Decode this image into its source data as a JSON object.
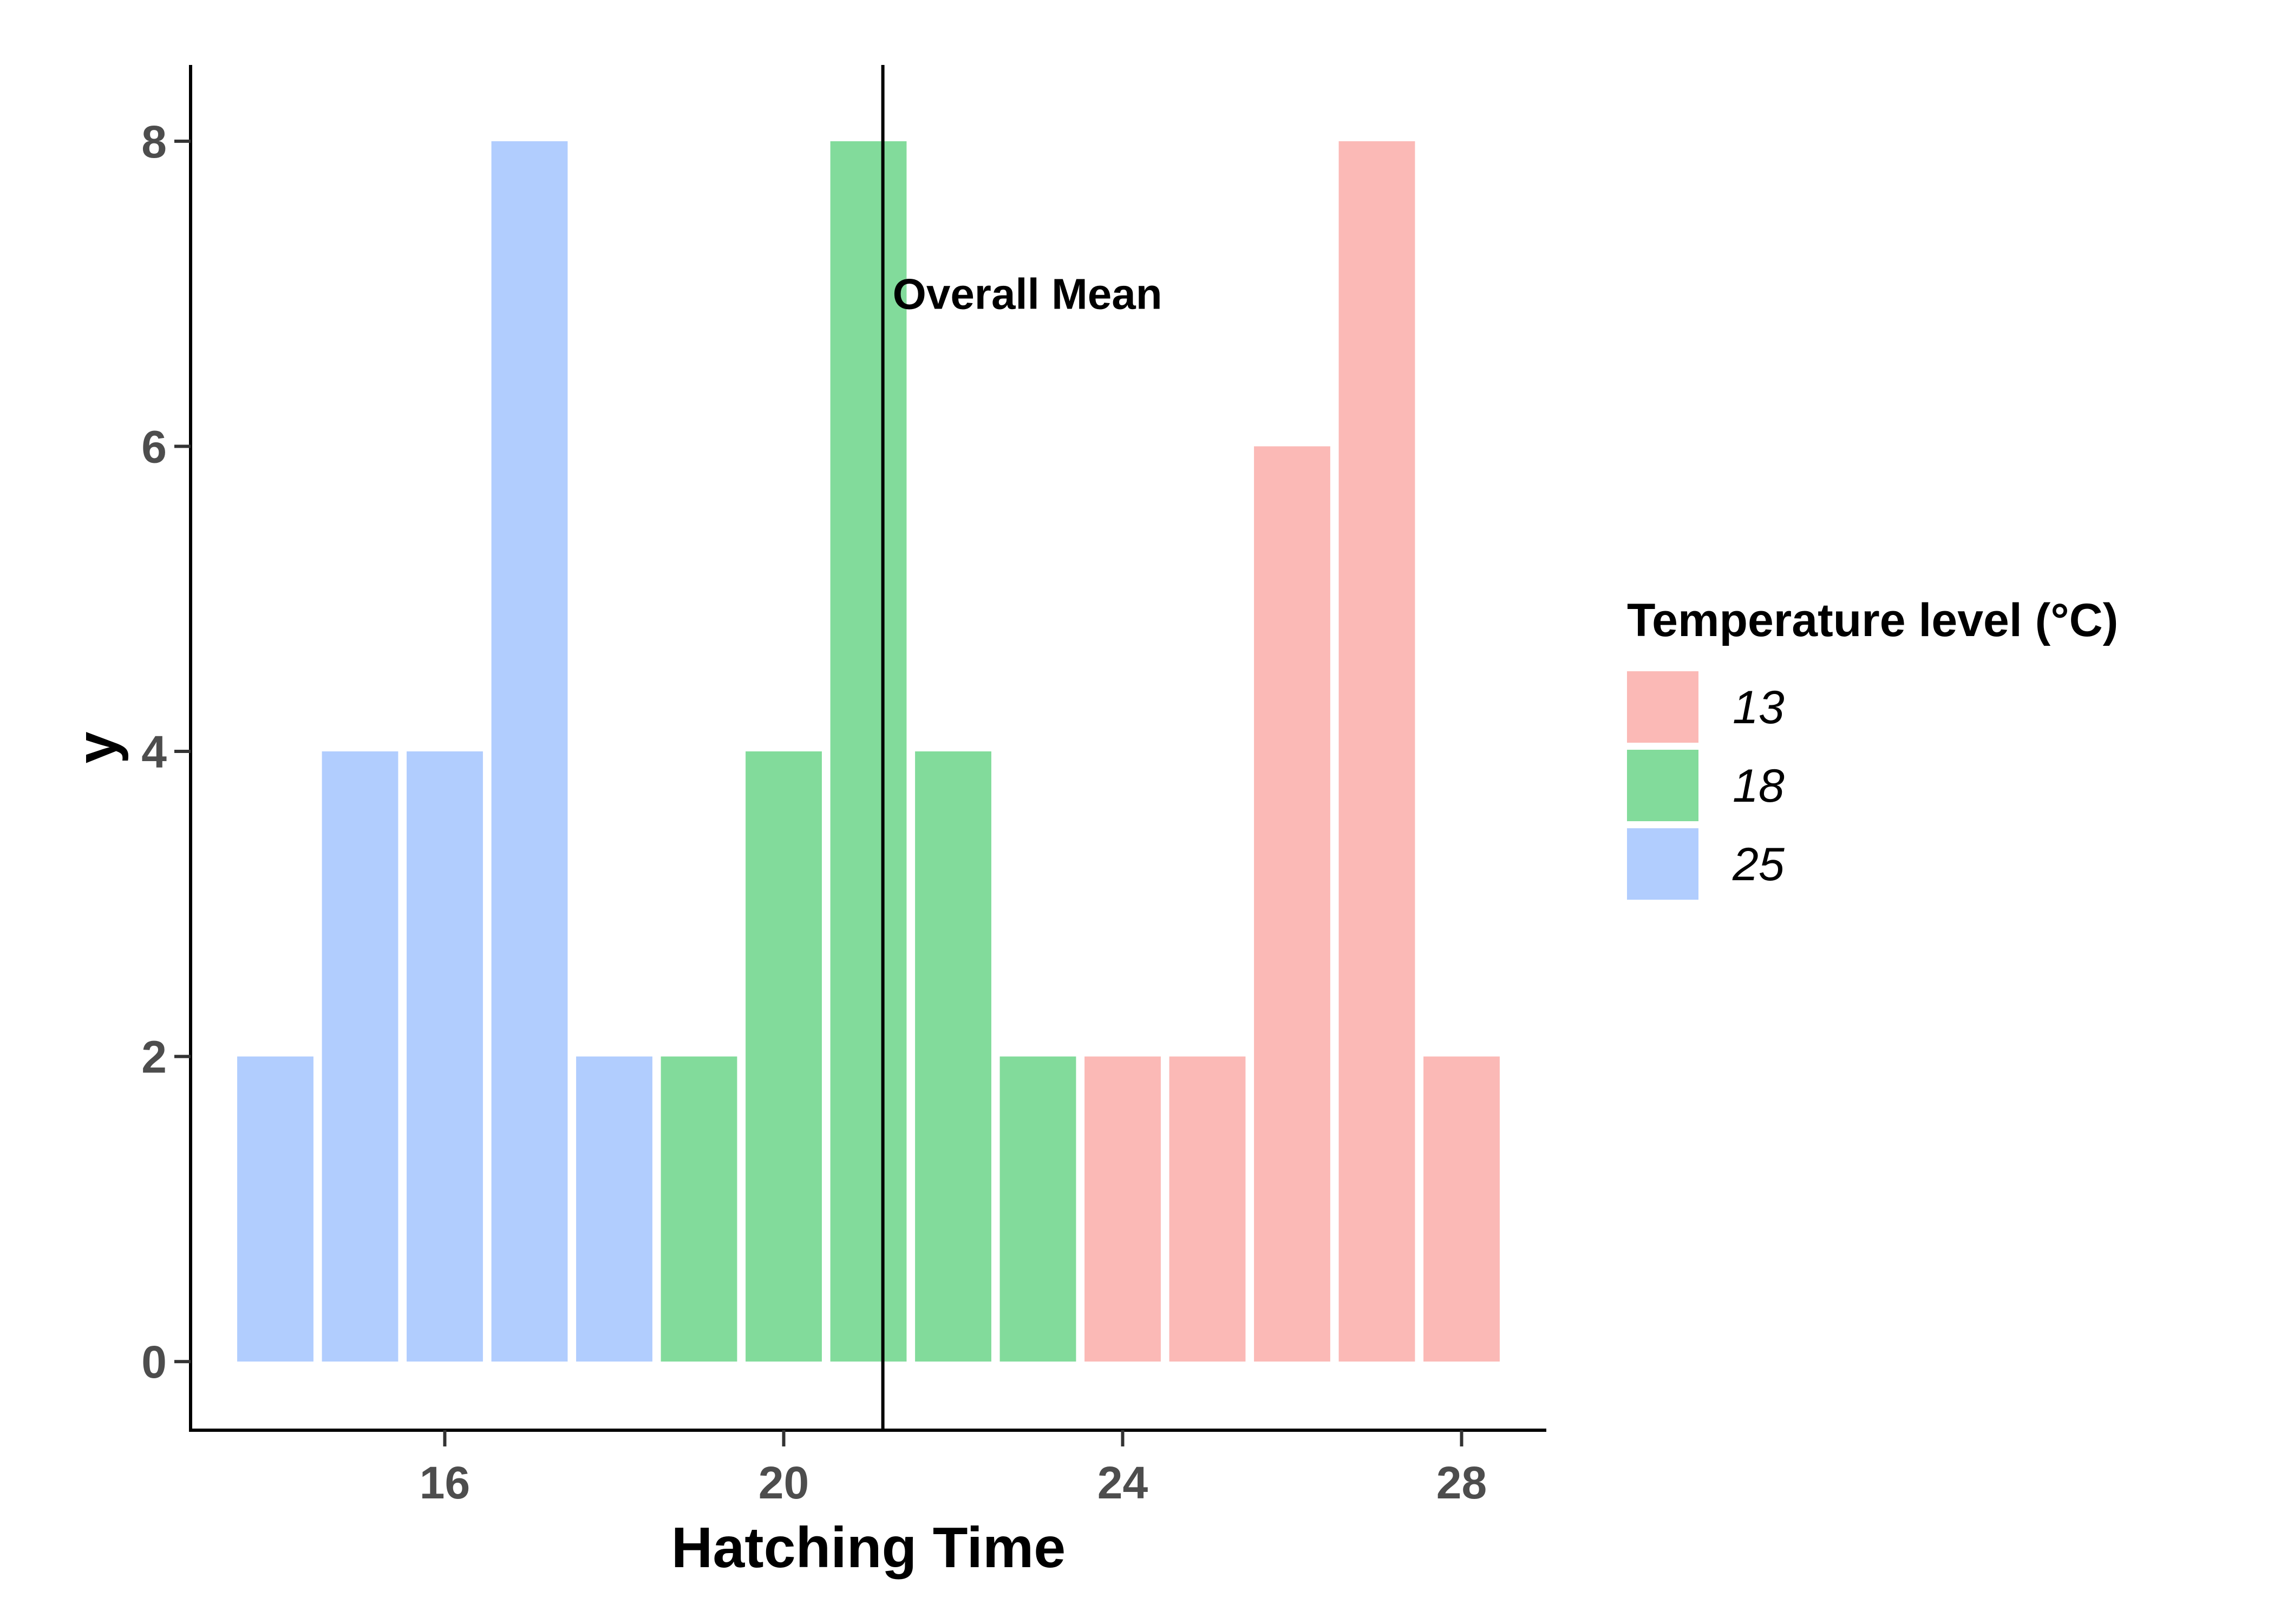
{
  "chart_data": {
    "type": "bar",
    "title": "",
    "xlabel": "Hatching Time",
    "ylabel": "y",
    "xlim": [
      13,
      29
    ],
    "ylim": [
      -0.45,
      8.5
    ],
    "x_ticks": [
      16,
      20,
      24,
      28
    ],
    "y_ticks": [
      0,
      2,
      4,
      6,
      8
    ],
    "grid": false,
    "legend": {
      "title": "Temperature level (°C)",
      "position": "right",
      "entries": [
        {
          "label": "13",
          "color": "#fbb9b6"
        },
        {
          "label": "18",
          "color": "#82db9b"
        },
        {
          "label": "25",
          "color": "#b1cdfe"
        }
      ]
    },
    "series": [
      {
        "name": "25",
        "color": "#b1cdfe",
        "x": [
          14,
          15,
          16,
          17,
          18
        ],
        "values": [
          2,
          4,
          4,
          8,
          2
        ]
      },
      {
        "name": "18",
        "color": "#82db9b",
        "x": [
          19,
          20,
          21,
          22,
          23
        ],
        "values": [
          2,
          4,
          8,
          4,
          2
        ]
      },
      {
        "name": "13",
        "color": "#fbb9b6",
        "x": [
          24,
          25,
          26,
          27,
          28
        ],
        "values": [
          2,
          2,
          6,
          8,
          2
        ]
      }
    ],
    "reference_line": {
      "x": 21.17,
      "label": "Overall Mean"
    }
  }
}
